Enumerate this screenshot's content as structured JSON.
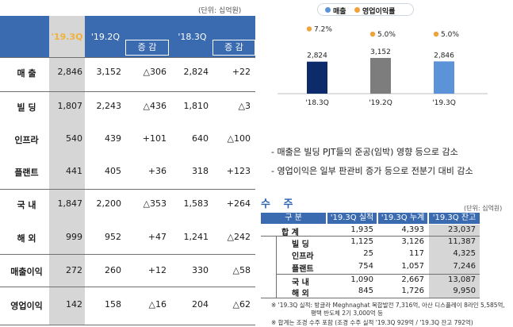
{
  "financials": {
    "unit": "(단위: 십억원)",
    "columns": {
      "c1": "'19.3Q",
      "c2": "'19.2Q",
      "c3": "증 감",
      "c4": "'18.3Q",
      "c5": "증 감"
    },
    "rows": [
      {
        "label": "매    출",
        "v1": "2,846",
        "v2": "3,152",
        "v3": "△306",
        "v4": "2,824",
        "v5": "+22"
      },
      {
        "label": "빌    딩",
        "v1": "1,807",
        "v2": "2,243",
        "v3": "△436",
        "v4": "1,810",
        "v5": "△3"
      },
      {
        "label": "인프라",
        "v1": "540",
        "v2": "439",
        "v3": "+101",
        "v4": "640",
        "v5": "△100"
      },
      {
        "label": "플랜트",
        "v1": "441",
        "v2": "405",
        "v3": "+36",
        "v4": "318",
        "v5": "+123"
      },
      {
        "label": "국    내",
        "v1": "1,847",
        "v2": "2,200",
        "v3": "△353",
        "v4": "1,583",
        "v5": "+264"
      },
      {
        "label": "해    외",
        "v1": "999",
        "v2": "952",
        "v3": "+47",
        "v4": "1,241",
        "v5": "△242"
      },
      {
        "label": "매출이익",
        "v1": "272",
        "v2": "260",
        "v3": "+12",
        "v4": "330",
        "v5": "△58"
      },
      {
        "label": "영업이익",
        "v1": "142",
        "v2": "158",
        "v3": "△16",
        "v4": "204",
        "v5": "△62"
      }
    ]
  },
  "chart_data": {
    "type": "bar",
    "categories": [
      "'18.3Q",
      "'19.2Q",
      "'19.3Q"
    ],
    "series": [
      {
        "name": "매출",
        "values": [
          2824,
          3152,
          2846
        ],
        "labels": [
          "2,824",
          "3,152",
          "2,846"
        ],
        "colors": [
          "#0d2a6b",
          "#7d7d7d",
          "#5c93d8"
        ]
      },
      {
        "name": "영업이익률",
        "values": [
          7.2,
          5.0,
          5.0
        ],
        "labels": [
          "7.2%",
          "5.0%",
          "5.0%"
        ],
        "color": "#f0a23b"
      }
    ],
    "legend": {
      "position": "top"
    },
    "grid": false
  },
  "notes": [
    "- 매출은 빌딩 PJT들의 준공(임박) 영향 등으로 감소",
    "- 영업이익은 일부 판관비 증가 등으로 전분기 대비 감소"
  ],
  "orders": {
    "title": "수 주",
    "unit": "(단위: 십억원)",
    "headers": {
      "h0": "구  분",
      "h1": "'19.3Q 실적",
      "h2": "'19.3Q 누계",
      "h3": "'19.3Q 잔고"
    },
    "rows": [
      {
        "label": "합    계",
        "v1": "1,935",
        "v2": "4,393",
        "v3": "23,037"
      },
      {
        "label": "빌    딩",
        "v1": "1,125",
        "v2": "3,126",
        "v3": "11,387"
      },
      {
        "label": "인프라",
        "v1": "25",
        "v2": "117",
        "v3": "4,325"
      },
      {
        "label": "플랜트",
        "v1": "754",
        "v2": "1,057",
        "v3": "7,246"
      },
      {
        "label": "국    내",
        "v1": "1,090",
        "v2": "2,667",
        "v3": "13,087"
      },
      {
        "label": "해    외",
        "v1": "845",
        "v2": "1,726",
        "v3": "9,950"
      }
    ],
    "footnotes": [
      "※ '19.3Q 실적: 방글라 Meghnaghat 복합발전 7,316억, 아산 디스플레이 8라인 5,585억,",
      "평택 반도체 2기 3,000억 등",
      "※ 합계는 조경 수주 포함 (조경 수주 실적 '19.3Q 929억 / '19.3Q 잔고 792억)"
    ]
  }
}
